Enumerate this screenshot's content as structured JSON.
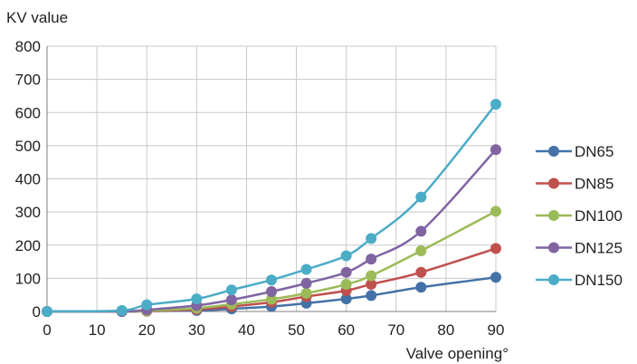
{
  "chart_data": {
    "type": "line",
    "title": "",
    "xlabel": "Valve opening°",
    "ylabel": "KV value",
    "xlim": [
      0,
      90
    ],
    "ylim": [
      0,
      800
    ],
    "xticks": [
      0,
      10,
      20,
      30,
      40,
      50,
      60,
      70,
      80,
      90
    ],
    "yticks": [
      0,
      100,
      200,
      300,
      400,
      500,
      600,
      700,
      800
    ],
    "grid": true,
    "legend_position": "right",
    "series": [
      {
        "name": "DN65",
        "color": "#4472A8",
        "points": [
          [
            0,
            0
          ],
          [
            15,
            0
          ],
          [
            20,
            1
          ],
          [
            30,
            3
          ],
          [
            37,
            8
          ],
          [
            45,
            15
          ],
          [
            52,
            25
          ],
          [
            60,
            38
          ],
          [
            65,
            48
          ],
          [
            75,
            73
          ],
          [
            90,
            103
          ]
        ]
      },
      {
        "name": "DN85",
        "color": "#C0504D",
        "points": [
          [
            0,
            0
          ],
          [
            15,
            0
          ],
          [
            20,
            1
          ],
          [
            30,
            6
          ],
          [
            37,
            15
          ],
          [
            45,
            28
          ],
          [
            52,
            45
          ],
          [
            60,
            63
          ],
          [
            65,
            82
          ],
          [
            75,
            118
          ],
          [
            90,
            190
          ]
        ]
      },
      {
        "name": "DN100",
        "color": "#9BBB59",
        "points": [
          [
            0,
            0
          ],
          [
            15,
            0
          ],
          [
            20,
            2
          ],
          [
            30,
            10
          ],
          [
            37,
            22
          ],
          [
            45,
            37
          ],
          [
            52,
            55
          ],
          [
            60,
            82
          ],
          [
            65,
            108
          ],
          [
            75,
            183
          ],
          [
            90,
            302
          ]
        ]
      },
      {
        "name": "DN125",
        "color": "#8064A2",
        "points": [
          [
            0,
            0
          ],
          [
            15,
            0
          ],
          [
            20,
            5
          ],
          [
            30,
            18
          ],
          [
            37,
            35
          ],
          [
            45,
            60
          ],
          [
            52,
            85
          ],
          [
            60,
            118
          ],
          [
            65,
            158
          ],
          [
            75,
            242
          ],
          [
            90,
            488
          ]
        ]
      },
      {
        "name": "DN150",
        "color": "#4BACC6",
        "points": [
          [
            0,
            0
          ],
          [
            15,
            3
          ],
          [
            20,
            20
          ],
          [
            30,
            38
          ],
          [
            37,
            65
          ],
          [
            45,
            95
          ],
          [
            52,
            127
          ],
          [
            60,
            168
          ],
          [
            65,
            220
          ],
          [
            75,
            345
          ],
          [
            90,
            625
          ]
        ]
      }
    ]
  }
}
